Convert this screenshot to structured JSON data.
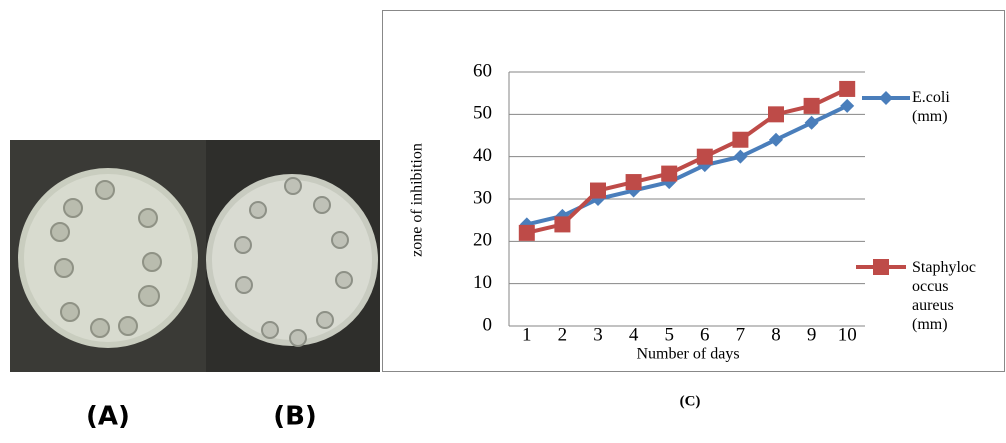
{
  "panels": {
    "labels": [
      "(A)",
      "(B)",
      "(C)"
    ]
  },
  "chart_data": {
    "type": "line",
    "x_label": "Number of days",
    "y_label": "zone of inhibition",
    "categories": [
      "1",
      "2",
      "3",
      "4",
      "5",
      "6",
      "7",
      "8",
      "9",
      "10"
    ],
    "series": [
      {
        "name": "E.coli (mm)",
        "color": "#4a7ebb",
        "marker": "diamond",
        "values": [
          24,
          26,
          30,
          32,
          34,
          38,
          40,
          44,
          48,
          52
        ]
      },
      {
        "name": "Staphylococcus aureus (mm)",
        "color": "#be4b48",
        "marker": "square",
        "values": [
          22,
          24,
          32,
          34,
          36,
          40,
          44,
          50,
          52,
          56
        ]
      }
    ],
    "ylim": [
      0,
      60
    ],
    "yticks": [
      0,
      10,
      20,
      30,
      40,
      50,
      60
    ],
    "grid": true
  }
}
